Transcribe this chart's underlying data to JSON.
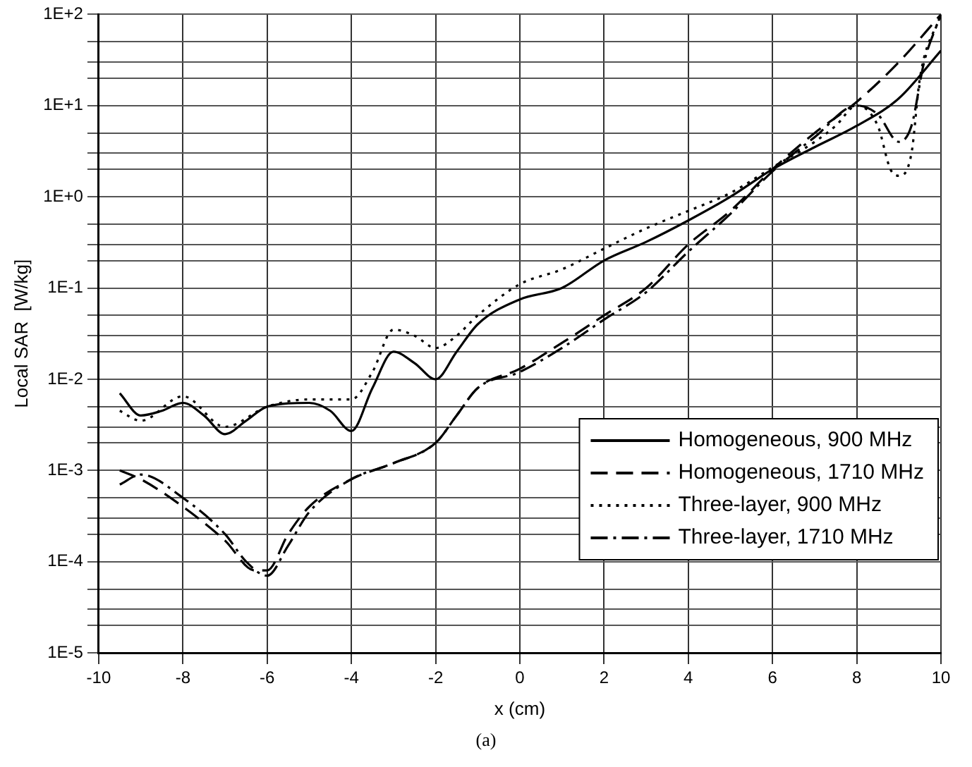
{
  "chart_data": {
    "type": "line",
    "xlabel": "x (cm)",
    "ylabel": "Local SAR  [W/kg]",
    "annotations": [
      "(a)"
    ],
    "log": "y",
    "grid": true,
    "legend": "bottom right",
    "marker": "none",
    "xlim": [
      -10,
      10
    ],
    "xticks": [
      -10,
      -8,
      -6,
      -4,
      -2,
      0,
      2,
      4,
      6,
      8,
      10
    ],
    "ylim": [
      1e-05,
      100
    ],
    "yticks": [
      {
        "value": 1e-05,
        "label": "1E-5"
      },
      {
        "value": 2e-05,
        "label": null
      },
      {
        "value": 3e-05,
        "label": null
      },
      {
        "value": 5e-05,
        "label": null
      },
      {
        "value": 0.0001,
        "label": "1E-4"
      },
      {
        "value": 0.0002,
        "label": null
      },
      {
        "value": 0.0003,
        "label": null
      },
      {
        "value": 0.0005,
        "label": null
      },
      {
        "value": 0.001,
        "label": "1E-3"
      },
      {
        "value": 0.002,
        "label": null
      },
      {
        "value": 0.003,
        "label": null
      },
      {
        "value": 0.005,
        "label": null
      },
      {
        "value": 0.01,
        "label": "1E-2"
      },
      {
        "value": 0.02,
        "label": null
      },
      {
        "value": 0.03,
        "label": null
      },
      {
        "value": 0.05,
        "label": null
      },
      {
        "value": 0.1,
        "label": "1E-1"
      },
      {
        "value": 0.2,
        "label": null
      },
      {
        "value": 0.3,
        "label": null
      },
      {
        "value": 0.5,
        "label": null
      },
      {
        "value": 1,
        "label": "1E+0"
      },
      {
        "value": 2,
        "label": null
      },
      {
        "value": 3,
        "label": null
      },
      {
        "value": 5,
        "label": null
      },
      {
        "value": 10,
        "label": "1E+1"
      },
      {
        "value": 20,
        "label": null
      },
      {
        "value": 30,
        "label": null
      },
      {
        "value": 50,
        "label": null
      },
      {
        "value": 100,
        "label": "1E+2"
      }
    ],
    "series": [
      {
        "name": "Homogeneous, 900 MHz",
        "color": "#000000",
        "line_style": "solid",
        "x": [
          -9.5,
          -9,
          -8.5,
          -8,
          -7.5,
          -7,
          -6.5,
          -6,
          -5,
          -4.5,
          -4,
          -3.5,
          -3,
          -2.5,
          -2,
          -1.5,
          -1,
          0,
          1,
          2,
          3,
          4,
          5,
          6,
          7,
          8,
          9,
          10
        ],
        "values": [
          0.007,
          0.004,
          0.0045,
          0.0055,
          0.004,
          0.0025,
          0.0035,
          0.005,
          0.0055,
          0.0045,
          0.0027,
          0.008,
          0.02,
          0.015,
          0.01,
          0.02,
          0.04,
          0.075,
          0.1,
          0.2,
          0.32,
          0.55,
          1,
          2,
          3.5,
          6,
          12,
          40
        ]
      },
      {
        "name": "Homogeneous, 1710 MHz",
        "color": "#000000",
        "line_style": "dashed",
        "x": [
          -9.5,
          -9,
          -8,
          -7,
          -6.3,
          -6,
          -5.5,
          -5,
          -4,
          -3,
          -2,
          -1.5,
          -1,
          0,
          1,
          2,
          3,
          4,
          5,
          6,
          7,
          8,
          9,
          10
        ],
        "values": [
          0.001,
          0.0008,
          0.0004,
          0.00017,
          8e-05,
          8e-05,
          0.0002,
          0.0004,
          0.0008,
          0.0012,
          0.002,
          0.004,
          0.008,
          0.013,
          0.025,
          0.05,
          0.1,
          0.3,
          0.7,
          2,
          5,
          11,
          30,
          100
        ]
      },
      {
        "name": "Three-layer, 900 MHz",
        "color": "#000000",
        "line_style": "dotted",
        "x": [
          -9.5,
          -9,
          -8,
          -7,
          -6,
          -5,
          -4,
          -3.5,
          -3,
          -2.5,
          -2,
          -1.5,
          -1,
          0,
          1,
          2,
          3,
          4,
          5,
          6,
          7,
          7.5,
          8,
          8.5,
          8.8,
          9,
          9.3,
          9.5,
          10
        ],
        "values": [
          0.0045,
          0.0035,
          0.0065,
          0.003,
          0.005,
          0.006,
          0.006,
          0.012,
          0.035,
          0.03,
          0.022,
          0.03,
          0.05,
          0.11,
          0.16,
          0.27,
          0.45,
          0.7,
          1.1,
          2.1,
          4,
          6,
          10,
          6,
          2,
          1.7,
          3,
          20,
          100
        ]
      },
      {
        "name": "Three-layer, 1710 MHz",
        "color": "#000000",
        "line_style": "dashdot",
        "x": [
          -9.5,
          -9,
          -8,
          -7,
          -6.5,
          -6,
          -5.5,
          -5,
          -4,
          -3,
          -2,
          -1.5,
          -1,
          0,
          1,
          2,
          3,
          4,
          5,
          6,
          7,
          8,
          8.5,
          9,
          9.3,
          9.6,
          10
        ],
        "values": [
          0.0007,
          0.0009,
          0.0005,
          0.0002,
          0.0001,
          7e-05,
          0.00015,
          0.00035,
          0.0008,
          0.0012,
          0.002,
          0.004,
          0.008,
          0.012,
          0.022,
          0.045,
          0.09,
          0.25,
          0.65,
          1.9,
          4.5,
          10,
          8,
          4,
          6,
          30,
          100
        ]
      }
    ]
  }
}
